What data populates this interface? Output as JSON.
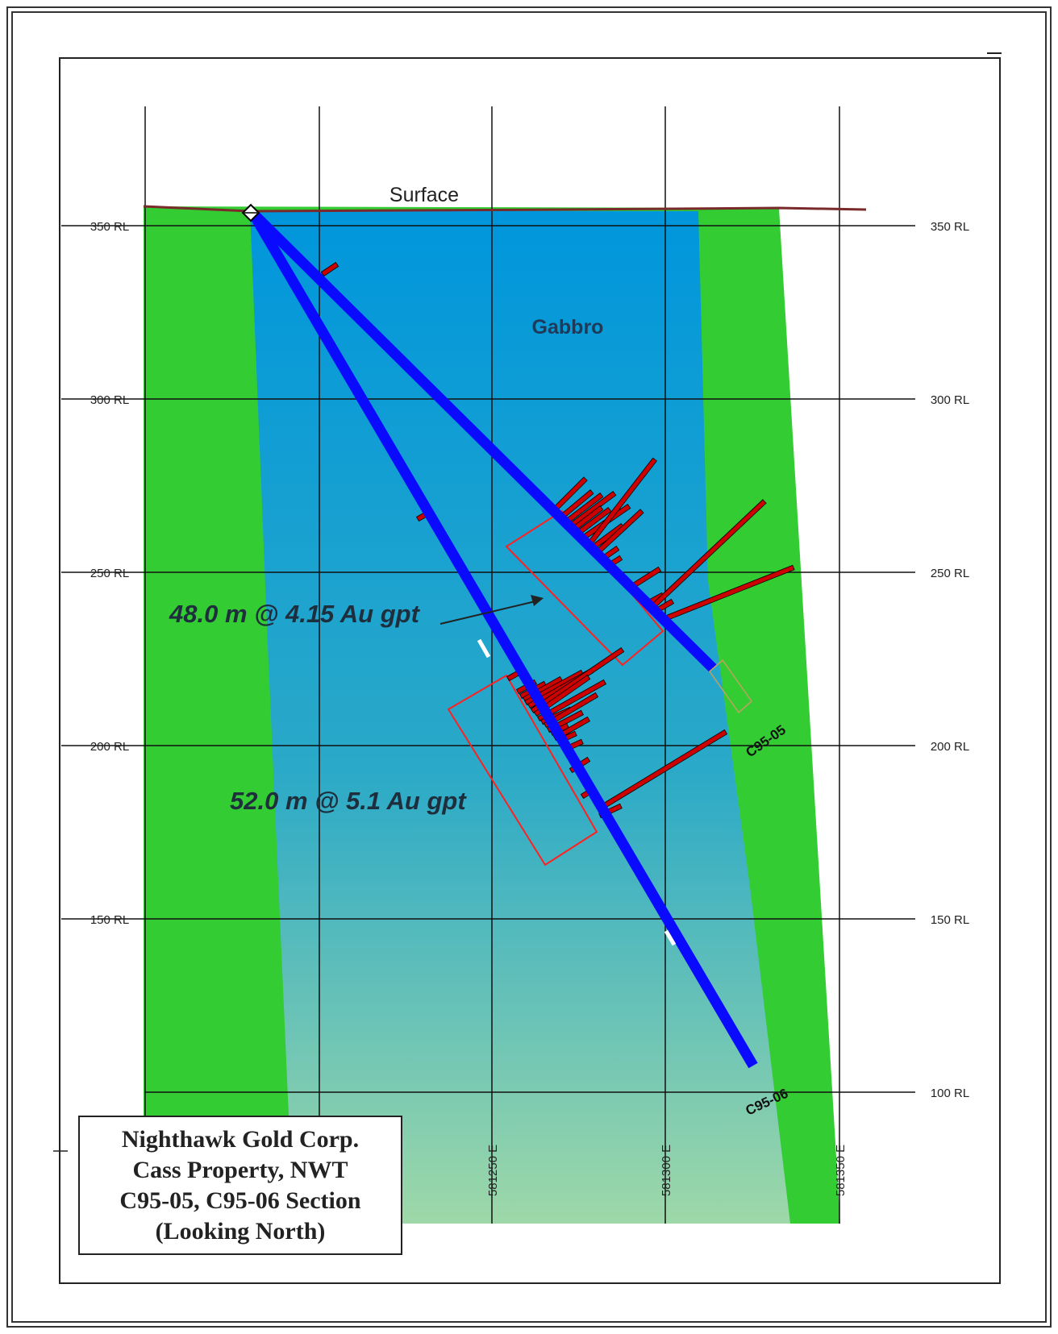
{
  "labels": {
    "surface": "Surface",
    "gabbro": "Gabbro",
    "intercept_upper": "48.0 m @ 4.15 Au gpt",
    "intercept_lower": "52.0 m @ 5.1 Au gpt",
    "hole_05": "C95-05",
    "hole_06": "C95-06"
  },
  "rl_axis": [
    {
      "value": 350,
      "label": "350 RL"
    },
    {
      "value": 300,
      "label": "300 RL"
    },
    {
      "value": 250,
      "label": "250 RL"
    },
    {
      "value": 200,
      "label": "200 RL"
    },
    {
      "value": 150,
      "label": "150 RL"
    },
    {
      "value": 100,
      "label": "100 RL"
    }
  ],
  "easting_axis": [
    {
      "value": 581250,
      "label": "581250 E"
    },
    {
      "value": 581300,
      "label": "581300 E"
    },
    {
      "value": 581350,
      "label": "581350 E"
    }
  ],
  "title_block": {
    "line1": "Nighthawk Gold Corp.",
    "line2": "Cass Property, NWT",
    "line3": "C95-05, C95-06 Section",
    "line4": "(Looking North)"
  },
  "colors": {
    "host_rock": "#33cc33",
    "gabbro_top": "#0096dc",
    "gabbro_bottom": "#9ed8a8",
    "drill_trace": "#0a0aff",
    "assay_bar": "#cc0000",
    "zone_outline": "#ff2020",
    "surface_line": "#7a2a2a"
  }
}
